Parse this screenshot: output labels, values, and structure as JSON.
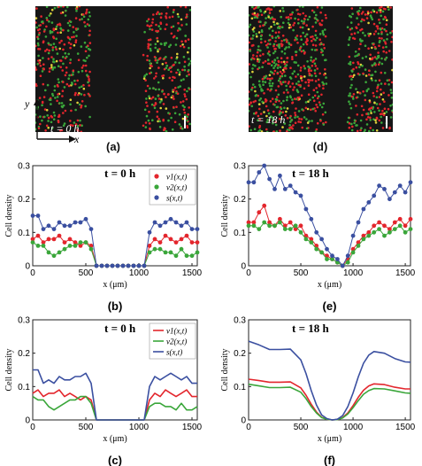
{
  "micrographs": [
    {
      "id": "a",
      "time_label": "t = 0 h",
      "axis_y": "y",
      "axis_x": "x",
      "panel_label": "(a)"
    },
    {
      "id": "d",
      "time_label": "t = 18 h",
      "panel_label": "(d)"
    }
  ],
  "colors": {
    "v1": "#e3262d",
    "v2": "#3aa63a",
    "s": "#3a4fa0",
    "background": "#161616"
  },
  "chart_data": [
    {
      "id": "b",
      "type": "line",
      "panel_label": "(b)",
      "time_label": "t = 0 h",
      "markers": true,
      "legend_position": "top-right",
      "xlabel": "x (μm)",
      "ylabel": "Cell density",
      "xlim": [
        0,
        1550
      ],
      "ylim": [
        0,
        0.3
      ],
      "xticks": [
        0,
        500,
        1000,
        1500
      ],
      "yticks": [
        0,
        0.1,
        0.2,
        0.3
      ],
      "x": [
        0,
        50,
        100,
        150,
        200,
        250,
        300,
        350,
        400,
        450,
        500,
        550,
        600,
        650,
        700,
        750,
        800,
        850,
        900,
        950,
        1000,
        1050,
        1100,
        1150,
        1200,
        1250,
        1300,
        1350,
        1400,
        1450,
        1500,
        1550
      ],
      "series": [
        {
          "name": "v1(x,t)",
          "key": "v1",
          "values": [
            0.08,
            0.09,
            0.07,
            0.08,
            0.08,
            0.09,
            0.07,
            0.08,
            0.07,
            0.06,
            0.07,
            0.06,
            0.0,
            0.0,
            0.0,
            0.0,
            0.0,
            0.0,
            0.0,
            0.0,
            0.0,
            0.0,
            0.06,
            0.08,
            0.07,
            0.09,
            0.08,
            0.07,
            0.08,
            0.09,
            0.07,
            0.07
          ]
        },
        {
          "name": "v2(x,t)",
          "key": "v2",
          "values": [
            0.07,
            0.06,
            0.06,
            0.04,
            0.03,
            0.04,
            0.05,
            0.06,
            0.06,
            0.07,
            0.07,
            0.05,
            0.0,
            0.0,
            0.0,
            0.0,
            0.0,
            0.0,
            0.0,
            0.0,
            0.0,
            0.0,
            0.04,
            0.05,
            0.05,
            0.04,
            0.04,
            0.03,
            0.05,
            0.03,
            0.03,
            0.04
          ]
        },
        {
          "name": "s(x,t)",
          "key": "s",
          "values": [
            0.15,
            0.15,
            0.11,
            0.12,
            0.11,
            0.13,
            0.12,
            0.12,
            0.13,
            0.13,
            0.14,
            0.11,
            0.0,
            0.0,
            0.0,
            0.0,
            0.0,
            0.0,
            0.0,
            0.0,
            0.0,
            0.0,
            0.1,
            0.13,
            0.12,
            0.13,
            0.14,
            0.13,
            0.12,
            0.13,
            0.11,
            0.11
          ]
        }
      ]
    },
    {
      "id": "e",
      "type": "line",
      "panel_label": "(e)",
      "time_label": "t = 18 h",
      "markers": true,
      "xlabel": "x (μm)",
      "ylabel": "Cell density",
      "xlim": [
        0,
        1550
      ],
      "ylim": [
        0,
        0.3
      ],
      "xticks": [
        0,
        500,
        1000,
        1500
      ],
      "yticks": [
        0,
        0.1,
        0.2,
        0.3
      ],
      "x": [
        0,
        50,
        100,
        150,
        200,
        250,
        300,
        350,
        400,
        450,
        500,
        550,
        600,
        650,
        700,
        750,
        800,
        850,
        900,
        950,
        1000,
        1050,
        1100,
        1150,
        1200,
        1250,
        1300,
        1350,
        1400,
        1450,
        1500,
        1550
      ],
      "series": [
        {
          "name": "v1",
          "key": "v1",
          "values": [
            0.13,
            0.13,
            0.16,
            0.18,
            0.13,
            0.12,
            0.14,
            0.12,
            0.13,
            0.11,
            0.12,
            0.09,
            0.08,
            0.06,
            0.04,
            0.03,
            0.02,
            0.01,
            0.0,
            0.02,
            0.05,
            0.07,
            0.09,
            0.1,
            0.12,
            0.13,
            0.12,
            0.11,
            0.13,
            0.14,
            0.12,
            0.14
          ]
        },
        {
          "name": "v2",
          "key": "v2",
          "values": [
            0.12,
            0.12,
            0.11,
            0.13,
            0.12,
            0.12,
            0.13,
            0.11,
            0.11,
            0.12,
            0.1,
            0.08,
            0.07,
            0.05,
            0.04,
            0.02,
            0.02,
            0.01,
            0.0,
            0.01,
            0.04,
            0.06,
            0.08,
            0.09,
            0.1,
            0.11,
            0.09,
            0.1,
            0.11,
            0.12,
            0.1,
            0.11
          ]
        },
        {
          "name": "s",
          "key": "s",
          "values": [
            0.25,
            0.25,
            0.28,
            0.3,
            0.26,
            0.23,
            0.27,
            0.23,
            0.24,
            0.22,
            0.21,
            0.17,
            0.14,
            0.1,
            0.08,
            0.05,
            0.03,
            0.02,
            0.0,
            0.03,
            0.09,
            0.13,
            0.17,
            0.19,
            0.21,
            0.24,
            0.23,
            0.2,
            0.22,
            0.24,
            0.22,
            0.25
          ]
        }
      ]
    },
    {
      "id": "c",
      "type": "line",
      "panel_label": "(c)",
      "time_label": "t = 0 h",
      "markers": false,
      "legend_position": "top-right",
      "xlabel": "x (μm)",
      "ylabel": "Cell density",
      "xlim": [
        0,
        1550
      ],
      "ylim": [
        0,
        0.3
      ],
      "xticks": [
        0,
        500,
        1000,
        1500
      ],
      "yticks": [
        0,
        0.1,
        0.2,
        0.3
      ],
      "x": [
        0,
        50,
        100,
        150,
        200,
        250,
        300,
        350,
        400,
        450,
        500,
        550,
        600,
        650,
        700,
        750,
        800,
        850,
        900,
        950,
        1000,
        1050,
        1100,
        1150,
        1200,
        1250,
        1300,
        1350,
        1400,
        1450,
        1500,
        1550
      ],
      "series": [
        {
          "name": "v1(x,t)",
          "key": "v1",
          "values": [
            0.08,
            0.09,
            0.07,
            0.08,
            0.08,
            0.09,
            0.07,
            0.08,
            0.07,
            0.06,
            0.07,
            0.06,
            0.0,
            0.0,
            0.0,
            0.0,
            0.0,
            0.0,
            0.0,
            0.0,
            0.0,
            0.0,
            0.06,
            0.08,
            0.07,
            0.09,
            0.08,
            0.07,
            0.08,
            0.09,
            0.07,
            0.07
          ]
        },
        {
          "name": "v2(x,t)",
          "key": "v2",
          "values": [
            0.07,
            0.06,
            0.06,
            0.04,
            0.03,
            0.04,
            0.05,
            0.06,
            0.06,
            0.07,
            0.07,
            0.05,
            0.0,
            0.0,
            0.0,
            0.0,
            0.0,
            0.0,
            0.0,
            0.0,
            0.0,
            0.0,
            0.04,
            0.05,
            0.05,
            0.04,
            0.04,
            0.03,
            0.05,
            0.03,
            0.03,
            0.04
          ]
        },
        {
          "name": "s(x,t)",
          "key": "s",
          "values": [
            0.15,
            0.15,
            0.11,
            0.12,
            0.11,
            0.13,
            0.12,
            0.12,
            0.13,
            0.13,
            0.14,
            0.11,
            0.0,
            0.0,
            0.0,
            0.0,
            0.0,
            0.0,
            0.0,
            0.0,
            0.0,
            0.0,
            0.1,
            0.13,
            0.12,
            0.13,
            0.14,
            0.13,
            0.12,
            0.13,
            0.11,
            0.11
          ]
        }
      ]
    },
    {
      "id": "f",
      "type": "line",
      "panel_label": "(f)",
      "time_label": "t = 18 h",
      "markers": false,
      "xlabel": "x (μm)",
      "ylabel": "Cell density",
      "xlim": [
        0,
        1550
      ],
      "ylim": [
        0,
        0.3
      ],
      "xticks": [
        0,
        500,
        1000,
        1500
      ],
      "yticks": [
        0,
        0.1,
        0.2,
        0.3
      ],
      "x": [
        0,
        100,
        200,
        300,
        400,
        500,
        550,
        600,
        650,
        700,
        750,
        800,
        850,
        900,
        950,
        1000,
        1050,
        1100,
        1150,
        1200,
        1300,
        1400,
        1500,
        1550
      ],
      "series": [
        {
          "name": "v1",
          "key": "v1",
          "values": [
            0.122,
            0.118,
            0.113,
            0.113,
            0.114,
            0.096,
            0.074,
            0.047,
            0.024,
            0.008,
            0.002,
            0.0,
            0.001,
            0.007,
            0.021,
            0.043,
            0.068,
            0.089,
            0.102,
            0.108,
            0.106,
            0.098,
            0.093,
            0.093
          ]
        },
        {
          "name": "v2",
          "key": "v2",
          "values": [
            0.107,
            0.102,
            0.097,
            0.097,
            0.098,
            0.083,
            0.064,
            0.04,
            0.021,
            0.007,
            0.002,
            0.0,
            0.001,
            0.006,
            0.018,
            0.037,
            0.058,
            0.077,
            0.088,
            0.094,
            0.093,
            0.087,
            0.081,
            0.08
          ]
        },
        {
          "name": "s",
          "key": "s",
          "values": [
            0.236,
            0.225,
            0.211,
            0.211,
            0.212,
            0.18,
            0.139,
            0.088,
            0.045,
            0.015,
            0.004,
            0.0,
            0.002,
            0.013,
            0.04,
            0.081,
            0.129,
            0.17,
            0.194,
            0.205,
            0.2,
            0.184,
            0.174,
            0.173
          ]
        }
      ]
    }
  ]
}
